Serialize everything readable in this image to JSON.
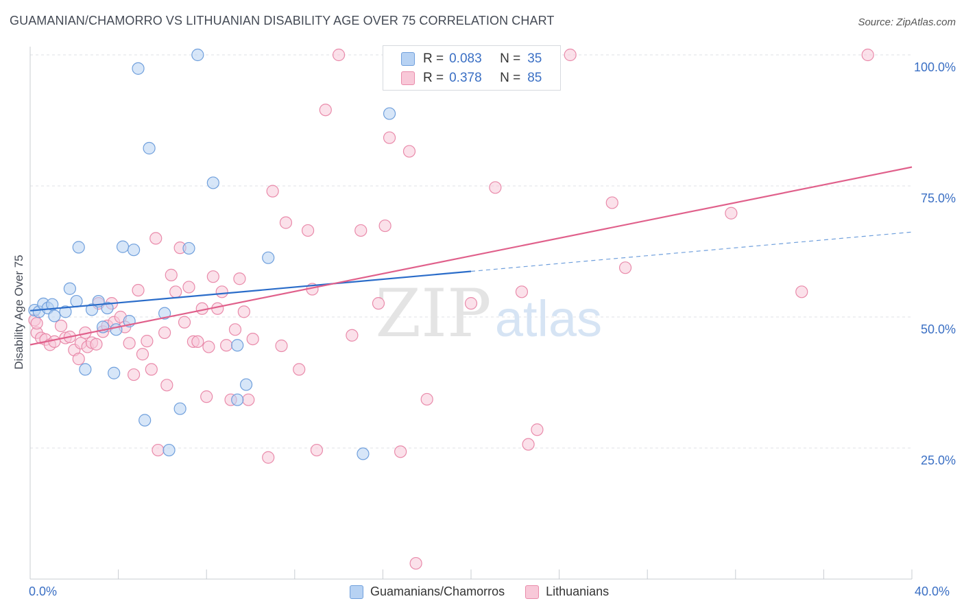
{
  "title": "GUAMANIAN/CHAMORRO VS LITHUANIAN DISABILITY AGE OVER 75 CORRELATION CHART",
  "source": "Source: ZipAtlas.com",
  "watermark": {
    "zip": "ZIP",
    "atlas": "atlas"
  },
  "legend": {
    "rows": [
      {
        "r_label": "R =",
        "r_value": "0.083",
        "n_label": "N =",
        "n_value": "35"
      },
      {
        "r_label": "R =",
        "r_value": "0.378",
        "n_label": "N =",
        "n_value": "85"
      }
    ]
  },
  "chart_data": {
    "type": "scatter",
    "ylabel": "Disability Age Over 75",
    "xlim": [
      0,
      40
    ],
    "ylim": [
      0,
      100
    ],
    "x_tick_labels": [
      "0.0%",
      "40.0%"
    ],
    "y_tick_labels": [
      "25.0%",
      "50.0%",
      "75.0%",
      "100.0%"
    ],
    "y_ticks": [
      25,
      50,
      75,
      100
    ],
    "grid": true,
    "legend_position": "top-center",
    "colors": {
      "blue_fill": "#b7d2f3",
      "blue_stroke": "#6f9fdc",
      "blue_line": "#2a6cc9",
      "pink_fill": "#f8c8d8",
      "pink_stroke": "#e98aaa",
      "pink_line": "#e0608b"
    },
    "series": [
      {
        "name": "Guamanians/Chamorros",
        "color": "#6f9fdc",
        "trend": {
          "x": [
            0,
            20
          ],
          "y": [
            51.2,
            58.7
          ],
          "dashed_extension": {
            "x": [
              20,
              40
            ],
            "y": [
              58.7,
              66.2
            ]
          }
        },
        "points": [
          [
            0.2,
            51.3
          ],
          [
            0.4,
            51.0
          ],
          [
            0.6,
            52.5
          ],
          [
            0.8,
            51.7
          ],
          [
            1.0,
            52.4
          ],
          [
            1.1,
            50.2
          ],
          [
            1.6,
            51.0
          ],
          [
            1.8,
            55.4
          ],
          [
            2.1,
            53.0
          ],
          [
            2.2,
            63.3
          ],
          [
            2.5,
            40.0
          ],
          [
            2.8,
            51.4
          ],
          [
            3.1,
            53.0
          ],
          [
            3.3,
            48.1
          ],
          [
            3.5,
            51.7
          ],
          [
            3.8,
            39.3
          ],
          [
            3.9,
            47.6
          ],
          [
            4.2,
            63.4
          ],
          [
            4.5,
            49.2
          ],
          [
            4.7,
            62.8
          ],
          [
            4.9,
            97.4
          ],
          [
            5.2,
            30.3
          ],
          [
            5.4,
            82.2
          ],
          [
            6.1,
            50.7
          ],
          [
            6.3,
            24.6
          ],
          [
            6.8,
            32.5
          ],
          [
            7.2,
            63.1
          ],
          [
            7.6,
            100.0
          ],
          [
            8.3,
            75.6
          ],
          [
            9.4,
            44.6
          ],
          [
            9.4,
            34.2
          ],
          [
            9.8,
            37.1
          ],
          [
            10.8,
            61.3
          ],
          [
            15.1,
            23.9
          ],
          [
            16.3,
            88.8
          ]
        ]
      },
      {
        "name": "Lithuanians",
        "color": "#e98aaa",
        "trend": {
          "x": [
            0,
            40
          ],
          "y": [
            44.7,
            78.6
          ]
        },
        "points": [
          [
            0.2,
            49.4
          ],
          [
            0.3,
            47.0
          ],
          [
            0.5,
            46.0
          ],
          [
            0.7,
            45.7
          ],
          [
            0.9,
            44.7
          ],
          [
            1.1,
            45.3
          ],
          [
            1.4,
            48.3
          ],
          [
            1.6,
            46.0
          ],
          [
            1.8,
            46.2
          ],
          [
            2.0,
            43.7
          ],
          [
            2.2,
            42.0
          ],
          [
            2.3,
            45.0
          ],
          [
            2.5,
            47.0
          ],
          [
            2.6,
            44.3
          ],
          [
            2.8,
            45.1
          ],
          [
            3.0,
            44.8
          ],
          [
            3.1,
            52.6
          ],
          [
            3.3,
            47.2
          ],
          [
            3.5,
            48.3
          ],
          [
            3.7,
            52.6
          ],
          [
            3.8,
            49.0
          ],
          [
            4.1,
            50.0
          ],
          [
            4.3,
            48.1
          ],
          [
            4.5,
            45.0
          ],
          [
            4.7,
            39.0
          ],
          [
            4.9,
            55.1
          ],
          [
            5.1,
            42.9
          ],
          [
            5.3,
            45.4
          ],
          [
            5.5,
            40.0
          ],
          [
            5.7,
            65.0
          ],
          [
            5.8,
            24.6
          ],
          [
            6.1,
            47.0
          ],
          [
            6.2,
            37.0
          ],
          [
            6.4,
            58.0
          ],
          [
            6.6,
            54.8
          ],
          [
            6.8,
            63.2
          ],
          [
            7.0,
            49.0
          ],
          [
            7.2,
            55.7
          ],
          [
            7.4,
            45.3
          ],
          [
            7.6,
            45.3
          ],
          [
            7.8,
            51.6
          ],
          [
            8.0,
            34.8
          ],
          [
            8.1,
            44.3
          ],
          [
            8.3,
            57.7
          ],
          [
            8.5,
            51.6
          ],
          [
            8.7,
            54.8
          ],
          [
            8.9,
            44.6
          ],
          [
            9.1,
            34.2
          ],
          [
            9.3,
            47.6
          ],
          [
            9.5,
            57.3
          ],
          [
            9.7,
            51.0
          ],
          [
            9.9,
            34.2
          ],
          [
            10.1,
            45.8
          ],
          [
            10.8,
            23.2
          ],
          [
            11.0,
            74.0
          ],
          [
            11.4,
            44.5
          ],
          [
            11.6,
            68.0
          ],
          [
            12.2,
            40.0
          ],
          [
            12.6,
            66.5
          ],
          [
            12.8,
            55.3
          ],
          [
            13.0,
            24.6
          ],
          [
            13.4,
            89.5
          ],
          [
            14.0,
            100.0
          ],
          [
            14.6,
            46.5
          ],
          [
            15.0,
            66.5
          ],
          [
            15.8,
            52.6
          ],
          [
            16.1,
            67.4
          ],
          [
            16.3,
            84.2
          ],
          [
            16.8,
            24.3
          ],
          [
            17.2,
            81.6
          ],
          [
            17.5,
            3.0
          ],
          [
            18.0,
            34.3
          ],
          [
            17.9,
            100.0
          ],
          [
            20.0,
            52.6
          ],
          [
            21.1,
            74.7
          ],
          [
            22.3,
            54.8
          ],
          [
            22.6,
            25.7
          ],
          [
            23.0,
            28.5
          ],
          [
            24.5,
            100.0
          ],
          [
            26.4,
            71.8
          ],
          [
            27.0,
            59.4
          ],
          [
            31.8,
            69.8
          ],
          [
            35.0,
            54.8
          ],
          [
            38.0,
            100.0
          ],
          [
            0.3,
            48.8
          ]
        ]
      }
    ]
  }
}
